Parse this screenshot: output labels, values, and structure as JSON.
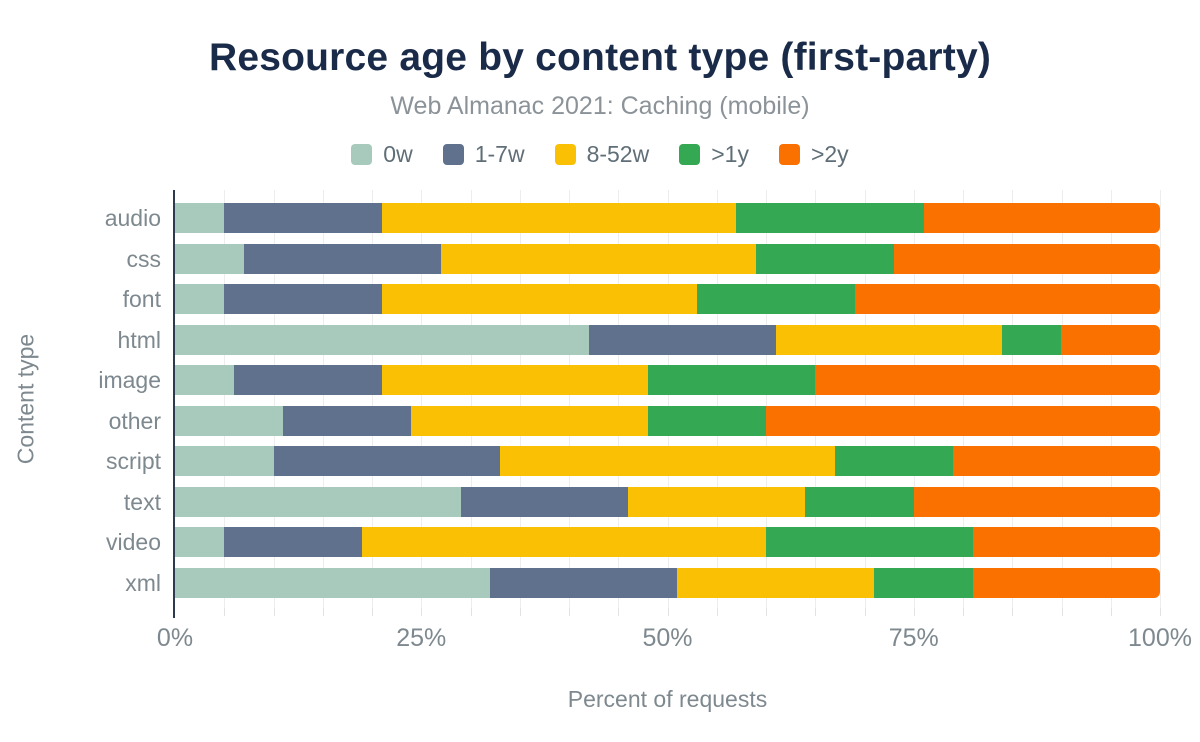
{
  "chart_data": {
    "type": "bar",
    "orientation": "horizontal",
    "stacked": true,
    "title": "Resource age by content type (first-party)",
    "subtitle": "Web Almanac 2021: Caching (mobile)",
    "xlabel": "Percent of requests",
    "ylabel": "Content type",
    "xlim": [
      0,
      100
    ],
    "x_tick_values": [
      0,
      25,
      50,
      75,
      100
    ],
    "x_tick_labels": [
      "0%",
      "25%",
      "50%",
      "75%",
      "100%"
    ],
    "grid_step": 5,
    "grid": "vertical light gridlines every 5%",
    "legend_position": "top",
    "categories": [
      "audio",
      "css",
      "font",
      "html",
      "image",
      "other",
      "script",
      "text",
      "video",
      "xml"
    ],
    "series": [
      {
        "name": "0w",
        "color": "#a8cabc",
        "values": [
          5,
          7,
          5,
          42,
          6,
          11,
          10,
          29,
          5,
          32
        ]
      },
      {
        "name": "1-7w",
        "color": "#5f718d",
        "values": [
          16,
          20,
          16,
          19,
          15,
          13,
          23,
          17,
          14,
          19
        ]
      },
      {
        "name": "8-52w",
        "color": "#f9c004",
        "values": [
          36,
          32,
          32,
          23,
          27,
          24,
          34,
          18,
          41,
          20
        ]
      },
      {
        "name": ">1y",
        "color": "#34a853",
        "values": [
          19,
          14,
          16,
          6,
          17,
          12,
          12,
          11,
          21,
          10
        ]
      },
      {
        "name": ">2y",
        "color": "#fb7100",
        "values": [
          24,
          27,
          31,
          10,
          35,
          40,
          21,
          25,
          19,
          19
        ]
      }
    ],
    "colors": {
      "title": "#1a2b49",
      "subtitle": "#8b9399",
      "axis_text": "#7e898f",
      "axis_line": "#2b3a4d",
      "gridline": "#ededed"
    }
  }
}
